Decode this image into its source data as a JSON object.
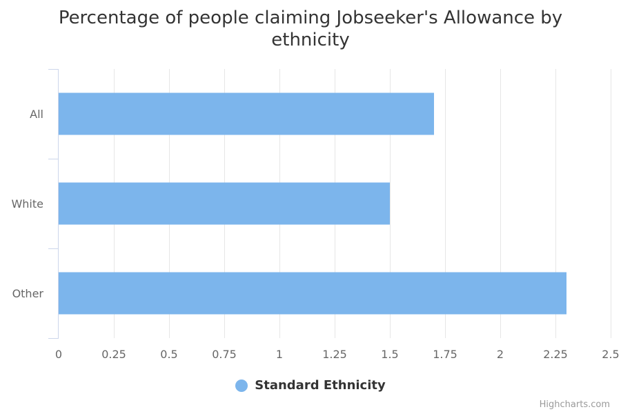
{
  "chart_data": {
    "type": "bar",
    "orientation": "horizontal",
    "title": "Percentage of people claiming Jobseeker's Allowance by ethnicity",
    "categories": [
      "All",
      "White",
      "Other"
    ],
    "series": [
      {
        "name": "Standard Ethnicity",
        "values": [
          1.7,
          1.5,
          2.3
        ],
        "color": "#7cb5ec"
      }
    ],
    "xlim": [
      0,
      2.5
    ],
    "ticks": [
      "0",
      "0.25",
      "0.5",
      "0.75",
      "1",
      "1.25",
      "1.5",
      "1.75",
      "2",
      "2.25",
      "2.5"
    ],
    "grid": true,
    "legend_position": "bottom-center"
  },
  "credits": "Highcharts.com"
}
